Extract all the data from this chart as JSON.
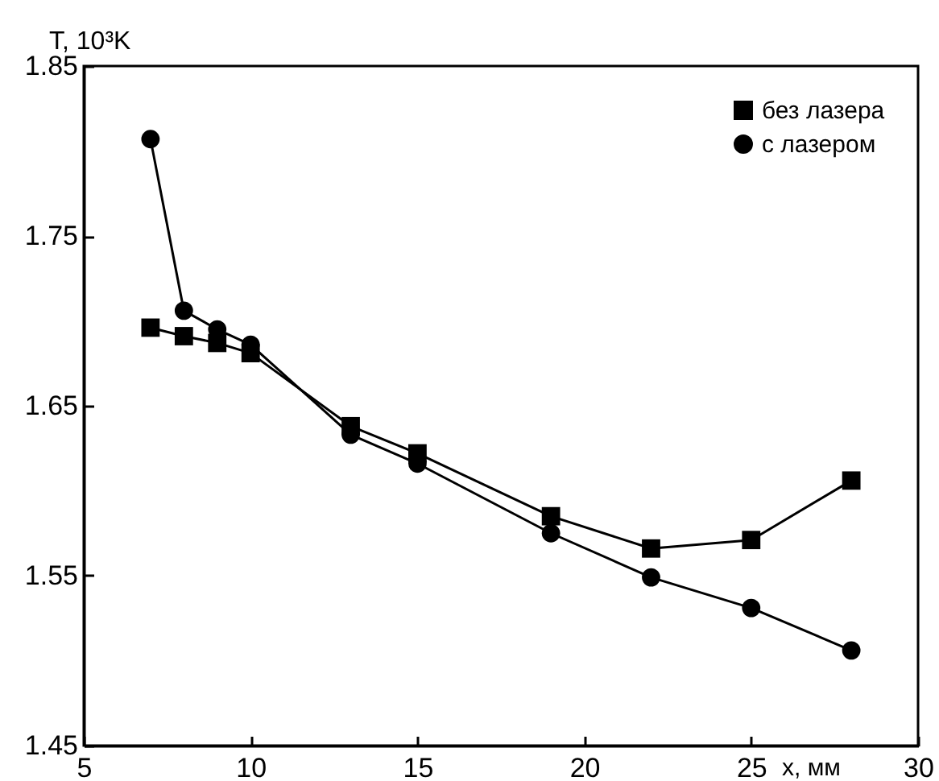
{
  "chart_data": {
    "type": "line",
    "xlabel": "x, мм",
    "ylabel": "T, 10³K",
    "x": [
      7,
      8,
      9,
      10,
      13,
      15,
      19,
      22,
      25,
      28
    ],
    "series": [
      {
        "name": "без лазера",
        "color": "#000000",
        "marker": "square",
        "values": [
          1.696,
          1.691,
          1.687,
          1.681,
          1.638,
          1.622,
          1.585,
          1.566,
          1.571,
          1.606
        ]
      },
      {
        "name": "с лазером",
        "color": "#000000",
        "marker": "circle",
        "values": [
          1.807,
          1.706,
          1.695,
          1.686,
          1.633,
          1.616,
          1.575,
          1.549,
          1.531,
          1.506
        ]
      }
    ],
    "xlim": [
      5,
      30
    ],
    "xticks": [
      5,
      10,
      15,
      20,
      25,
      30
    ],
    "ylim": [
      1.45,
      1.85
    ],
    "yticks": [
      1.45,
      1.55,
      1.65,
      1.75,
      1.85
    ],
    "legend": "top right",
    "grid": false,
    "line_style": "solid"
  }
}
